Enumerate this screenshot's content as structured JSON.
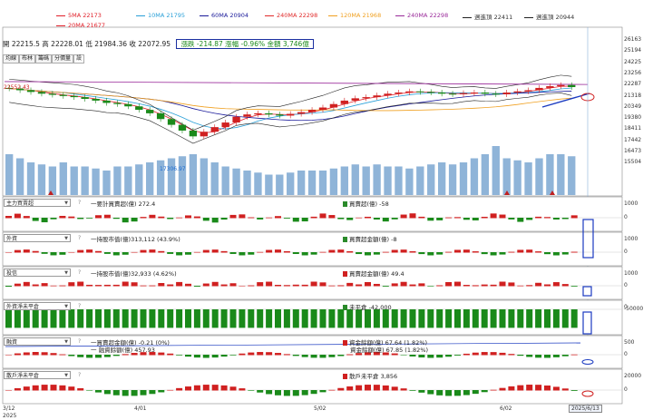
{
  "legend_row1": [
    {
      "label": "5MA 22173",
      "color": "#e0202a"
    },
    {
      "label": "10MA 21795",
      "color": "#2aa0d8"
    },
    {
      "label": "60MA 20904",
      "color": "#1a1a9a"
    },
    {
      "label": "240MA 22298",
      "color": "#e02a2a"
    },
    {
      "label": "120MA 21968",
      "color": "#f0a020"
    },
    {
      "label": "240MA 22298",
      "color": "#9a2a9a"
    },
    {
      "label": "週進頂 22411",
      "color": "#222222"
    },
    {
      "label": "週進頂 20944",
      "color": "#222222"
    }
  ],
  "legend_row2": [
    {
      "label": "20MA 21677",
      "color": "#e0202a"
    }
  ],
  "ohlc": {
    "text": "開 22215.5  高 22228.01  低 21984.36  收 22072.95",
    "change": "漲跌 -214.87  漲幅  -0.96%  金額 3,746億"
  },
  "tabs": [
    "均線",
    "布林",
    "籌碼",
    "分價量",
    "設"
  ],
  "price_axis": [
    "26163",
    "25194",
    "24225",
    "23256",
    "22287",
    "21318",
    "20349",
    "19380",
    "18411",
    "17442",
    "16473",
    "15504"
  ],
  "price_marks": {
    "left": "22552.43",
    "low": "17306.97"
  },
  "panels": [
    {
      "select": "主力買賣超",
      "info1": "一要計買賣超(億) 272.4",
      "info2": "買賣超(億) -58",
      "info2_color": "#2a8a2a",
      "axis": [
        "1000",
        "0"
      ]
    },
    {
      "select": "外資",
      "info1": "一持股市值(億)313,112 (43.9%)",
      "info2": "買賣超金額(億) -8",
      "info2_color": "#2a8a2a",
      "axis": [
        "1000",
        "0"
      ]
    },
    {
      "select": "投信",
      "info1": "一持股市值(億)32,933 (4.62%)",
      "info2": "買賣超金額(億) 49.4",
      "info2_color": "#d02020",
      "axis": [
        "1000",
        "0"
      ]
    },
    {
      "select": "外資淨未平倉",
      "info1": "",
      "info2": "未平倉 -42,000",
      "info2_color": "#2a8a2a",
      "axis": [
        "0",
        "-50000"
      ]
    },
    {
      "select": "融資",
      "info1": "一買賣超金額(億) -0.21 (0%)",
      "info1b": "一 融資餘額(億) 457.93",
      "info2": "資金餘額(億) 67.64 (1.82%)",
      "info2b": "資金餘額(億) 67.85 (1.82%)",
      "info2_color": "#d02020",
      "axis": [
        "500",
        "0"
      ]
    },
    {
      "select": "散戶淨未平倉",
      "info1": "",
      "info2": "散戶未平倉 3,856",
      "info2_color": "#d02020",
      "axis": [
        "20000",
        "0"
      ]
    }
  ],
  "x_labels": [
    "3/12\n2025",
    "4/01",
    "5/02",
    "6/02"
  ],
  "date_badge": "2025/6/13",
  "chart_data": {
    "type": "candlestick",
    "closes": [
      21950,
      21800,
      21650,
      21500,
      21400,
      21300,
      21200,
      21050,
      20900,
      20700,
      20600,
      20400,
      20100,
      19800,
      19300,
      18800,
      18300,
      17800,
      18200,
      18600,
      19000,
      19500,
      19700,
      19800,
      19700,
      19600,
      19750,
      19900,
      20100,
      20300,
      20600,
      20900,
      21100,
      21200,
      21350,
      21500,
      21600,
      21700,
      21650,
      21600,
      21500,
      21450,
      21550,
      21600,
      21500,
      21450,
      21600,
      21700,
      21800,
      22000,
      22150,
      22250,
      22072
    ],
    "volume": [
      1.0,
      0.9,
      0.8,
      0.75,
      0.7,
      0.8,
      0.7,
      0.7,
      0.65,
      0.6,
      0.7,
      0.7,
      0.75,
      0.8,
      0.85,
      0.9,
      0.95,
      1.0,
      0.9,
      0.8,
      0.7,
      0.65,
      0.6,
      0.55,
      0.5,
      0.5,
      0.55,
      0.6,
      0.6,
      0.6,
      0.65,
      0.7,
      0.75,
      0.7,
      0.75,
      0.7,
      0.7,
      0.65,
      0.7,
      0.75,
      0.8,
      0.75,
      0.8,
      0.9,
      1.0,
      1.2,
      0.9,
      0.85,
      0.8,
      0.9,
      1.0,
      1.0,
      0.95
    ]
  }
}
